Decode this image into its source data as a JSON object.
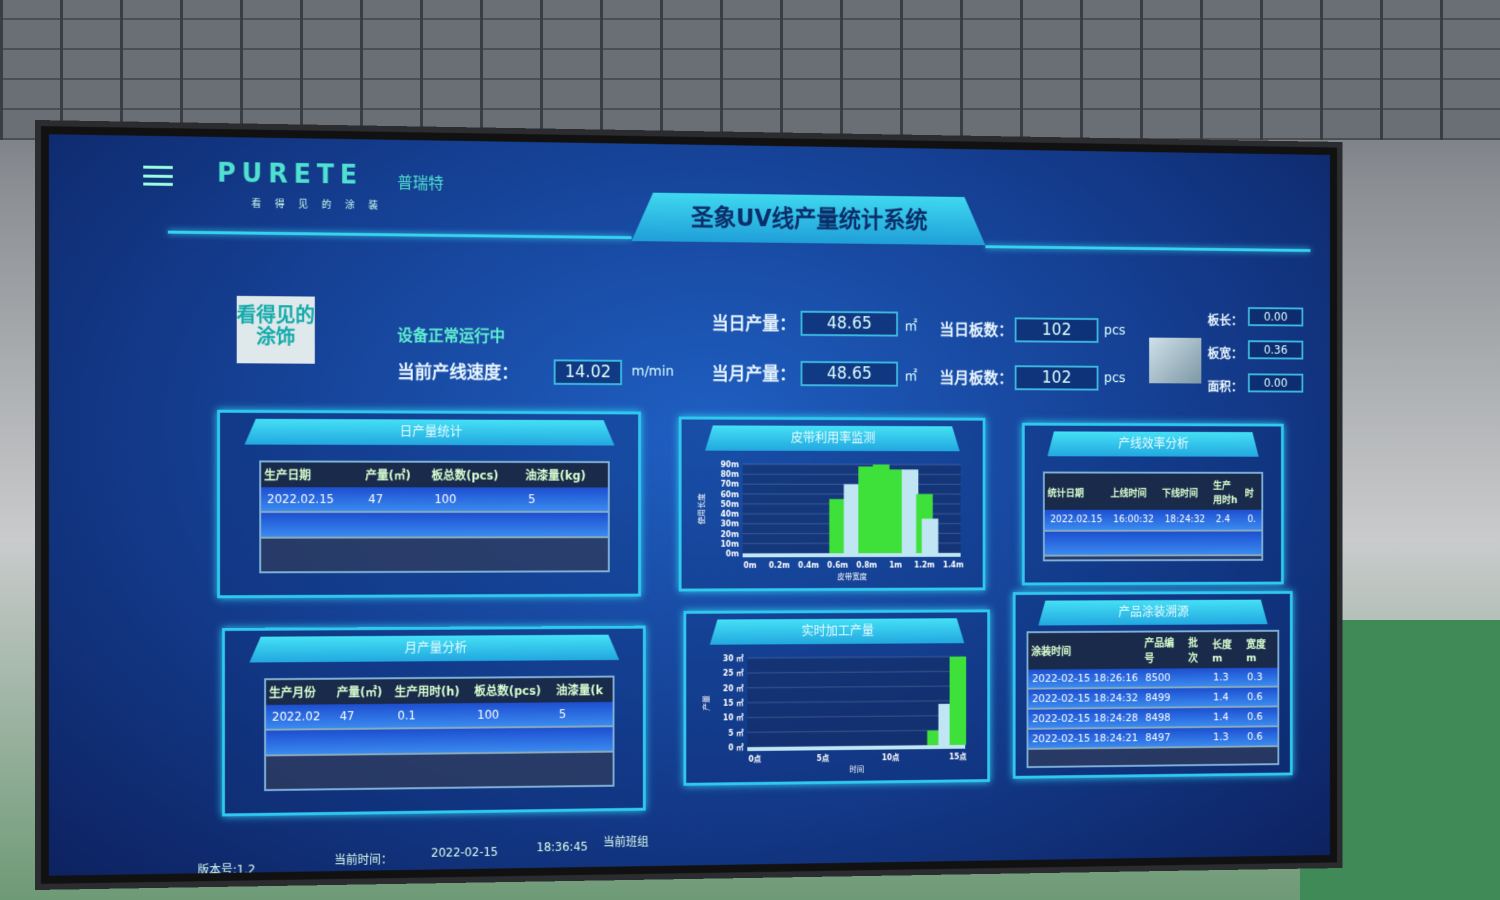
{
  "header": {
    "logo": "PURETE",
    "logo_cn": "普瑞特",
    "tagline": "看得见的涂装",
    "title": "圣象UV线产量统计系统",
    "logo_box": "看得见的涂饰"
  },
  "status": {
    "text": "设备正常运行中",
    "speed_label": "当前产线速度：",
    "speed_value": "14.02",
    "speed_unit": "m/min"
  },
  "stats": {
    "day_output_label": "当日产量：",
    "day_output": "48.65",
    "area_unit": "㎡",
    "month_output_label": "当月产量：",
    "month_output": "48.65",
    "day_boards_label": "当日板数：",
    "day_boards": "102",
    "pcs_unit": "pcs",
    "month_boards_label": "当月板数：",
    "month_boards": "102"
  },
  "board": {
    "length_label": "板长：",
    "length": "0.00",
    "width_label": "板宽：",
    "width": "0.36",
    "area_label": "面积：",
    "area": "0.00"
  },
  "daily": {
    "title": "日产量统计",
    "headers": [
      "生产日期",
      "产量(㎡)",
      "板总数(pcs)",
      "油漆量(kg)"
    ],
    "rows": [
      [
        "2022.02.15",
        "47",
        "100",
        "5"
      ]
    ]
  },
  "monthly": {
    "title": "月产量分析",
    "headers": [
      "生产月份",
      "产量(㎡)",
      "生产用时(h)",
      "板总数(pcs)",
      "油漆量(k"
    ],
    "rows": [
      [
        "2022.02",
        "47",
        "0.1",
        "100",
        "5"
      ]
    ]
  },
  "efficiency": {
    "title": "产线效率分析",
    "headers": [
      "统计日期",
      "上线时间",
      "下线时间",
      "生产用时h",
      "时"
    ],
    "rows": [
      [
        "2022.02.15",
        "16:00:32",
        "18:24:32",
        "2.4",
        "0."
      ]
    ]
  },
  "trace": {
    "title": "产品涂装溯源",
    "headers": [
      "涂装时间",
      "产品编号",
      "批次",
      "长度m",
      "宽度m"
    ],
    "rows": [
      [
        "2022-02-15 18:26:16",
        "8500",
        "",
        "1.3",
        "0.3"
      ],
      [
        "2022-02-15 18:24:32",
        "8499",
        "",
        "1.4",
        "0.6"
      ],
      [
        "2022-02-15 18:24:28",
        "8498",
        "",
        "1.4",
        "0.6"
      ],
      [
        "2022-02-15 18:24:21",
        "8497",
        "",
        "1.3",
        "0.6"
      ]
    ]
  },
  "footer": {
    "version": "版本号:1.2",
    "time_label": "当前时间：",
    "date": "2022-02-15",
    "time": "18:36:45",
    "extra": "当前班组"
  },
  "colors": {
    "accent": "#2fc8ee",
    "green": "#3ee03a",
    "light": "#bfe6f2",
    "bg": "#143d8f"
  },
  "chart_data": [
    {
      "type": "bar",
      "title": "皮带利用率监测",
      "xlabel": "皮带宽度",
      "ylabel": "使用长度",
      "ylim": [
        0,
        90
      ],
      "yticks": [
        "0m",
        "10m",
        "20m",
        "30m",
        "40m",
        "50m",
        "60m",
        "70m",
        "80m",
        "90m"
      ],
      "xticks": [
        "0m",
        "0.2m",
        "0.4m",
        "0.6m",
        "0.8m",
        "1m",
        "1.2m",
        "1.4m"
      ],
      "x": [
        0.6,
        0.7,
        0.8,
        0.9,
        1.0,
        1.1,
        1.2,
        1.2
      ],
      "values": [
        55,
        70,
        88,
        90,
        85,
        85,
        60,
        35
      ],
      "colors": [
        "green",
        "light",
        "green",
        "green",
        "green",
        "light",
        "green",
        "light"
      ]
    },
    {
      "type": "bar",
      "title": "实时加工产量",
      "xlabel": "时间",
      "ylabel": "产量",
      "ylim": [
        0,
        30
      ],
      "yticks": [
        "0 ㎡",
        "5 ㎡",
        "10 ㎡",
        "15 ㎡",
        "20 ㎡",
        "25 ㎡",
        "30 ㎡"
      ],
      "xticks": [
        "0点",
        "5点",
        "10点",
        "15点"
      ],
      "x": [
        16,
        17,
        18
      ],
      "values": [
        5,
        14,
        30
      ],
      "colors": [
        "green",
        "light",
        "green"
      ]
    }
  ]
}
